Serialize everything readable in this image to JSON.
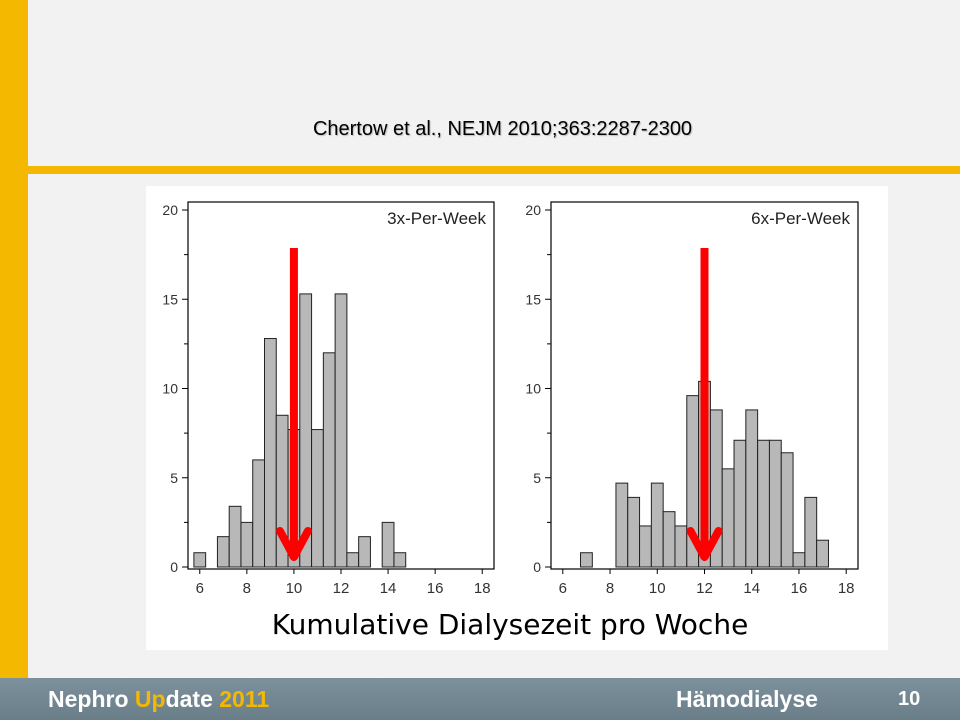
{
  "citation": "Chertow et al., NEJM 2010;363:2287-2300",
  "caption": "Kumulative Dialysezeit pro Woche",
  "footer": {
    "brand_part1": "Nephro ",
    "brand_part2": "Up",
    "brand_part3": "date ",
    "brand_year": "2011",
    "topic": "Hämodialyse",
    "page": "10"
  },
  "colors": {
    "accent": "#f5b800",
    "footer": "#6f838e",
    "bar_fill": "#b8b8b8",
    "arrow": "#ff0000"
  },
  "chart_data": [
    {
      "type": "bar",
      "title": "3x-Per-Week",
      "bin_width": 0.5,
      "x_bin_starts": [
        5.75,
        6.75,
        7.25,
        7.75,
        8.25,
        8.75,
        9.25,
        9.75,
        10.25,
        10.75,
        11.25,
        11.75,
        12.25,
        12.75,
        13.75,
        14.25
      ],
      "values": [
        0.8,
        1.7,
        3.4,
        2.5,
        6.0,
        12.8,
        8.5,
        7.7,
        15.3,
        7.7,
        12.0,
        15.3,
        0.8,
        1.7,
        2.5,
        0.8
      ],
      "xlim": [
        5.5,
        18.5
      ],
      "ylim": [
        0,
        20
      ],
      "x_ticks": [
        6,
        8,
        10,
        12,
        14,
        16,
        18
      ],
      "y_ticks": [
        0,
        5,
        10,
        15,
        20
      ],
      "arrow_x": 10,
      "grid": false
    },
    {
      "type": "bar",
      "title": "6x-Per-Week",
      "bin_width": 0.5,
      "x_bin_starts": [
        6.75,
        8.25,
        8.75,
        9.25,
        9.75,
        10.25,
        10.75,
        11.25,
        11.75,
        12.25,
        12.75,
        13.25,
        13.75,
        14.25,
        14.75,
        15.25,
        15.75,
        16.25,
        16.75
      ],
      "values": [
        0.8,
        4.7,
        3.9,
        2.3,
        4.7,
        3.1,
        2.3,
        9.6,
        10.4,
        8.8,
        5.5,
        7.1,
        8.8,
        7.1,
        7.1,
        6.4,
        0.8,
        3.9,
        1.5
      ],
      "xlim": [
        5.5,
        18.5
      ],
      "ylim": [
        0,
        20
      ],
      "x_ticks": [
        6,
        8,
        10,
        12,
        14,
        16,
        18
      ],
      "y_ticks": [
        0,
        5,
        10,
        15,
        20
      ],
      "arrow_x": 12,
      "grid": false
    }
  ]
}
